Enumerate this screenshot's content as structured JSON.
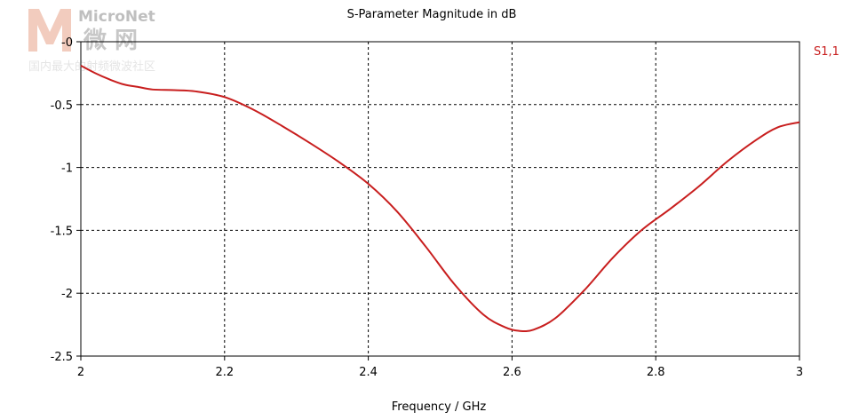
{
  "watermark": {
    "brand": "MicroNet",
    "brand_cn": "微 网",
    "tagline": "国内最大的射频微波社区",
    "logo_color": "#e8a48a"
  },
  "chart_data": {
    "type": "line",
    "title": "S-Parameter Magnitude in dB",
    "xlabel": "Frequency / GHz",
    "ylabel": "",
    "xlim": [
      2,
      3
    ],
    "ylim": [
      -2.5,
      0
    ],
    "xticks": [
      "2",
      "2.2",
      "2.4",
      "2.6",
      "2.8",
      "3"
    ],
    "yticks": [
      "-0",
      "-0.5",
      "-1",
      "-1.5",
      "-2",
      "-2.5"
    ],
    "grid": true,
    "legend_position": "right",
    "series": [
      {
        "name": "S1,1",
        "color": "#c81e1e",
        "x": [
          2.0,
          2.02,
          2.04,
          2.06,
          2.08,
          2.1,
          2.13,
          2.16,
          2.2,
          2.24,
          2.28,
          2.32,
          2.36,
          2.4,
          2.44,
          2.48,
          2.52,
          2.56,
          2.59,
          2.61,
          2.63,
          2.66,
          2.7,
          2.74,
          2.78,
          2.82,
          2.86,
          2.9,
          2.94,
          2.97,
          3.0
        ],
        "y": [
          -0.19,
          -0.25,
          -0.3,
          -0.34,
          -0.36,
          -0.38,
          -0.385,
          -0.395,
          -0.44,
          -0.54,
          -0.67,
          -0.81,
          -0.96,
          -1.13,
          -1.35,
          -1.63,
          -1.93,
          -2.17,
          -2.27,
          -2.3,
          -2.29,
          -2.2,
          -1.98,
          -1.72,
          -1.5,
          -1.33,
          -1.15,
          -0.95,
          -0.78,
          -0.68,
          -0.64
        ]
      }
    ]
  }
}
